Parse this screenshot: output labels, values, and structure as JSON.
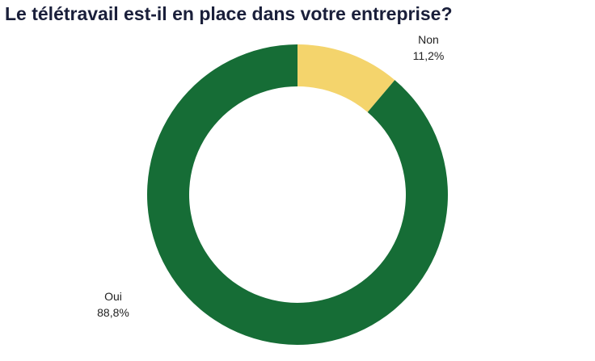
{
  "chart_data": {
    "type": "pie",
    "title": "Le télétravail est-il en place dans votre entreprise?",
    "categories": [
      "Non",
      "Oui"
    ],
    "values": [
      11.2,
      88.8
    ],
    "value_labels": [
      "11,2%",
      "88,8%"
    ],
    "colors": [
      "#f4d46c",
      "#166d36"
    ],
    "legend": "none"
  }
}
